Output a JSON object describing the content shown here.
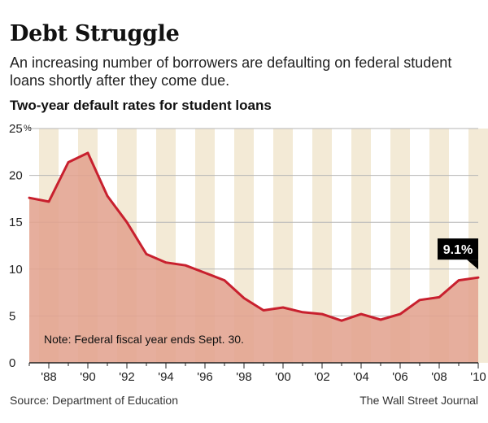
{
  "header": {
    "title": "Debt Struggle",
    "subtitle": "An increasing number of borrowers are defaulting on federal student loans shortly after they come due."
  },
  "chart_heading": "Two-year default rates for student loans",
  "footer": {
    "source": "Source: Department of Education",
    "credit": "The Wall Street Journal"
  },
  "colors": {
    "line": "#c8202e",
    "area": "#e3a38f",
    "band": "#f3ead6",
    "callout_bg": "#000000"
  },
  "chart_data": {
    "type": "area",
    "title": "Two-year default rates for student loans",
    "xlabel": "",
    "ylabel": "",
    "x": [
      1987,
      1988,
      1989,
      1990,
      1991,
      1992,
      1993,
      1994,
      1995,
      1996,
      1997,
      1998,
      1999,
      2000,
      2001,
      2002,
      2003,
      2004,
      2005,
      2006,
      2007,
      2008,
      2009,
      2010
    ],
    "series": [
      {
        "values": [
          17.6,
          17.2,
          21.4,
          22.4,
          17.8,
          15.0,
          11.6,
          10.7,
          10.4,
          9.6,
          8.8,
          6.9,
          5.6,
          5.9,
          5.4,
          5.2,
          4.5,
          5.2,
          4.6,
          5.2,
          6.7,
          7.0,
          8.8,
          9.1
        ]
      }
    ],
    "xlim": [
      1987,
      2010
    ],
    "ylim": [
      0,
      25
    ],
    "y_ticks": [
      0,
      5,
      10,
      15,
      20,
      25
    ],
    "y_tick_labels": [
      "0",
      "5",
      "10",
      "15",
      "20",
      "25"
    ],
    "y_unit": "%",
    "x_ticks": [
      1988,
      1990,
      1992,
      1994,
      1996,
      1998,
      2000,
      2002,
      2004,
      2006,
      2008,
      2010
    ],
    "x_tick_labels": [
      "'88",
      "'90",
      "'92",
      "'94",
      "'96",
      "'98",
      "'00",
      "'02",
      "'04",
      "'06",
      "'08",
      "'10"
    ],
    "annotations": [
      {
        "x": 2010,
        "y": 9.1,
        "text": "9.1%"
      }
    ],
    "note": "Note: Federal fiscal year ends Sept. 30.",
    "grid": true,
    "legend": "none"
  }
}
